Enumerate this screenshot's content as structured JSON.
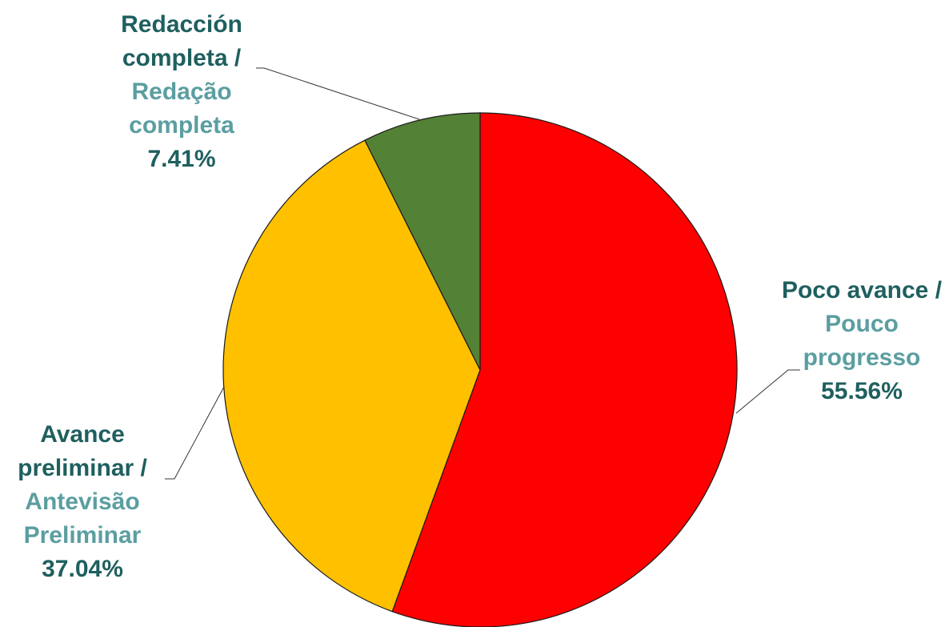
{
  "chart_data": {
    "type": "pie",
    "slices": [
      {
        "label_es": "Poco avance /",
        "label_pt": [
          "Pouco",
          "progresso"
        ],
        "value": 55.56,
        "value_label": "55.56%",
        "color": "#FF0000"
      },
      {
        "label_es": "Avance preliminar /",
        "label_pt": [
          "Antevisão",
          "Preliminar"
        ],
        "value": 37.04,
        "value_label": "37.04%",
        "color": "#FFC000"
      },
      {
        "label_es": "Redacción completa /",
        "label_pt": [
          "Redação",
          "completa"
        ],
        "value": 7.41,
        "value_label": "7.41%",
        "color": "#538135"
      }
    ],
    "start": "12 o'clock",
    "direction": "clockwise",
    "label_colors": {
      "spanish": "#1F5F5F",
      "portuguese": "#5B9EA0",
      "percent": "#1F5F5F"
    },
    "legend": "none"
  }
}
